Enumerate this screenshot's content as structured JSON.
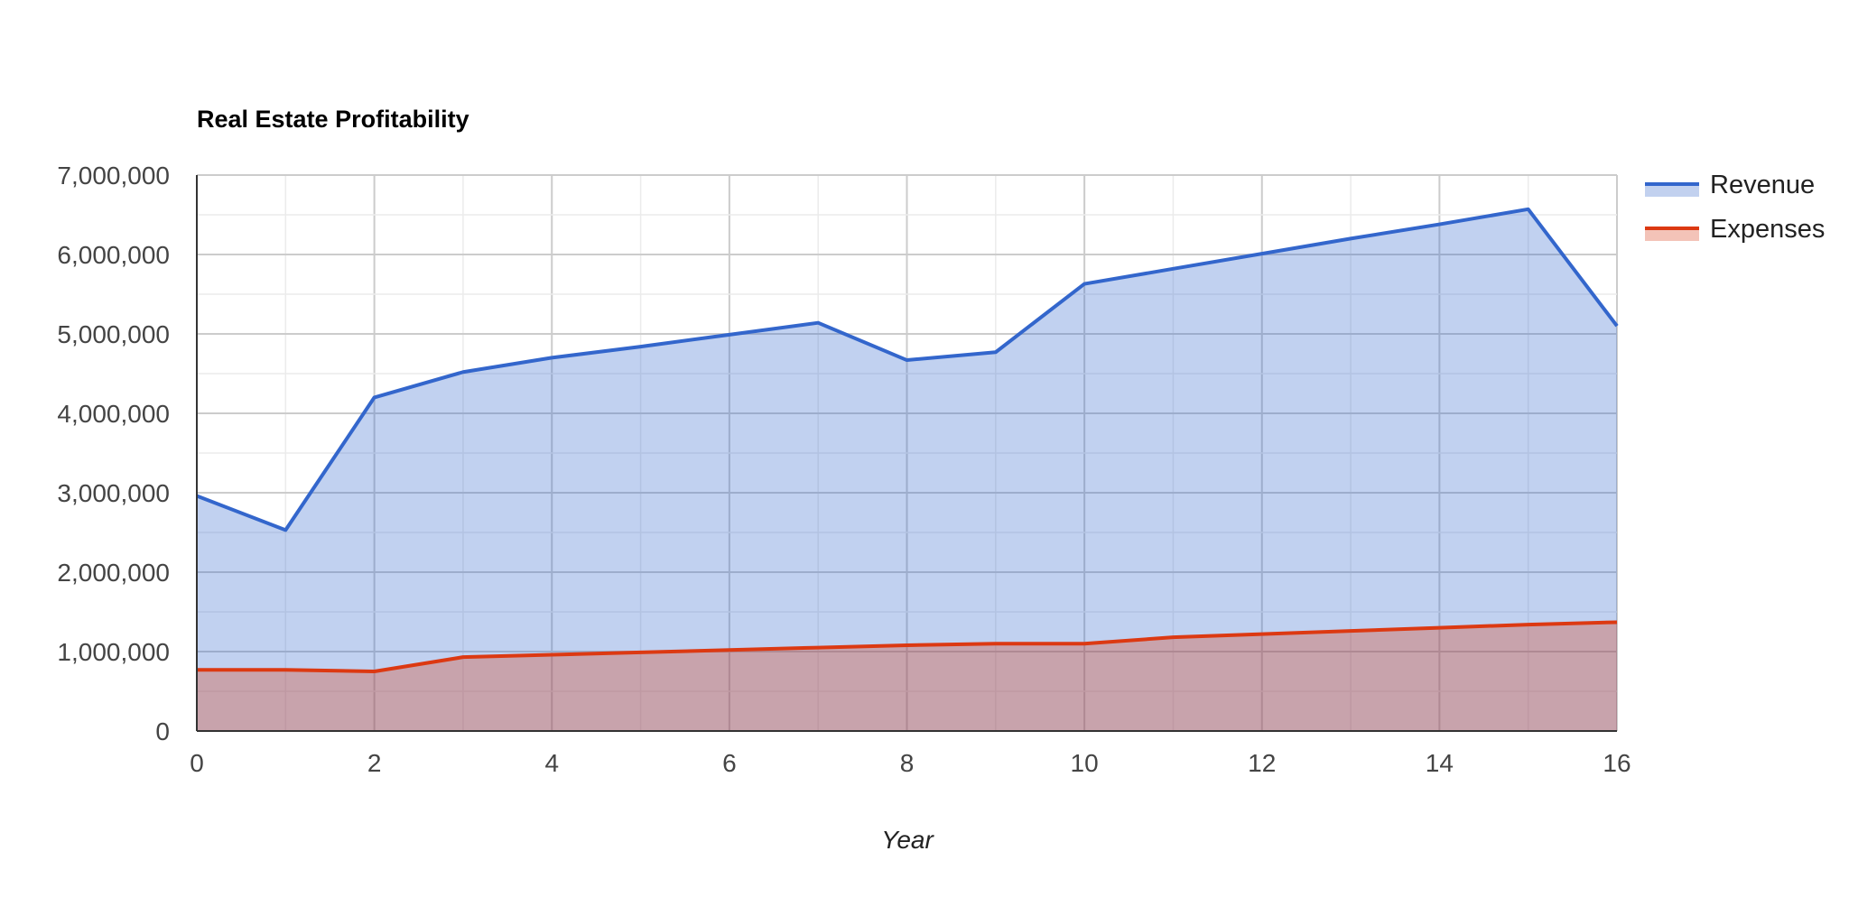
{
  "chart_data": {
    "type": "area",
    "title": "Real Estate Profitability",
    "xlabel": "Year",
    "ylabel": "",
    "x": [
      0,
      1,
      2,
      3,
      4,
      5,
      6,
      7,
      8,
      9,
      10,
      11,
      12,
      13,
      14,
      15,
      16
    ],
    "xlim": [
      0,
      16
    ],
    "ylim": [
      0,
      7000000
    ],
    "x_ticks": [
      "0",
      "2",
      "4",
      "6",
      "8",
      "10",
      "12",
      "14",
      "16"
    ],
    "y_ticks": [
      "0",
      "1,000,000",
      "2,000,000",
      "3,000,000",
      "4,000,000",
      "5,000,000",
      "6,000,000",
      "7,000,000"
    ],
    "grid": true,
    "legend_position": "right",
    "series": [
      {
        "name": "Revenue",
        "color": "#3366cc",
        "fill": "#c2d1ef",
        "values": [
          2960000,
          2530000,
          4200000,
          4520000,
          4700000,
          4840000,
          4990000,
          5140000,
          4670000,
          4770000,
          5630000,
          5820000,
          6010000,
          6200000,
          6380000,
          6570000,
          5100000
        ]
      },
      {
        "name": "Expenses",
        "color": "#dc3912",
        "fill": "#f3c3b8",
        "values": [
          770000,
          770000,
          750000,
          930000,
          960000,
          990000,
          1020000,
          1050000,
          1080000,
          1100000,
          1100000,
          1180000,
          1220000,
          1260000,
          1300000,
          1340000,
          1370000
        ]
      }
    ]
  }
}
